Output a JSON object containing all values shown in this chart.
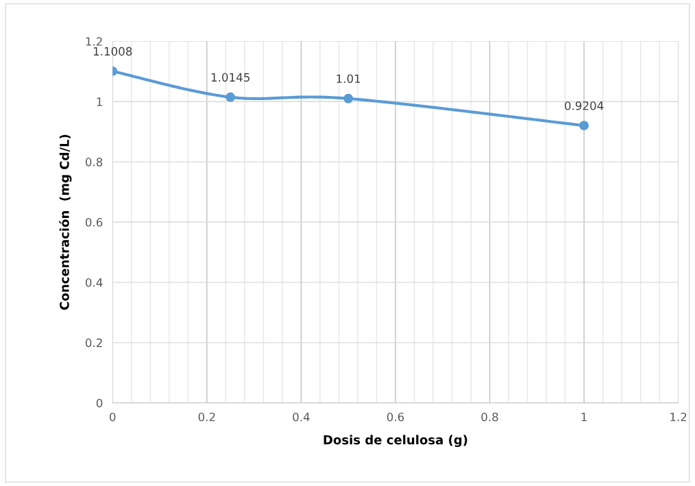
{
  "chart_data": {
    "type": "line",
    "xlabel": "Dosis de celulosa (g)",
    "ylabel": "Concentración  (mg Cd/L)",
    "x": [
      0,
      0.25,
      0.5,
      1
    ],
    "series": [
      {
        "color": "#5b9bd5",
        "values": [
          1.1008,
          1.0145,
          1.01,
          0.9204
        ]
      }
    ],
    "xlim": [
      0,
      1.2
    ],
    "ylim": [
      0,
      1.2
    ],
    "xticks": [
      0,
      {
        "value": 0.04,
        "label": null
      },
      {
        "value": 0.08,
        "label": null
      },
      {
        "value": 0.12,
        "label": null
      },
      {
        "value": 0.16,
        "label": null
      },
      0.2,
      {
        "value": 0.24,
        "label": null
      },
      {
        "value": 0.28,
        "label": null
      },
      {
        "value": 0.32,
        "label": null
      },
      {
        "value": 0.36,
        "label": null
      },
      0.4,
      {
        "value": 0.44,
        "label": null
      },
      {
        "value": 0.48,
        "label": null
      },
      {
        "value": 0.52,
        "label": null
      },
      {
        "value": 0.56,
        "label": null
      },
      0.6,
      {
        "value": 0.64,
        "label": null
      },
      {
        "value": 0.68,
        "label": null
      },
      {
        "value": 0.72,
        "label": null
      },
      {
        "value": 0.76,
        "label": null
      },
      0.8,
      {
        "value": 0.84,
        "label": null
      },
      {
        "value": 0.88,
        "label": null
      },
      {
        "value": 0.92,
        "label": null
      },
      {
        "value": 0.96,
        "label": null
      },
      1,
      {
        "value": 1.04,
        "label": null
      },
      {
        "value": 1.08,
        "label": null
      },
      {
        "value": 1.12,
        "label": null
      },
      {
        "value": 1.16,
        "label": null
      },
      1.2
    ],
    "yticks": [
      0,
      0.2,
      0.4,
      0.6,
      0.8,
      1,
      1.2
    ],
    "grid": true,
    "marker": "circle",
    "line_style": "solid",
    "data_labels": true
  }
}
